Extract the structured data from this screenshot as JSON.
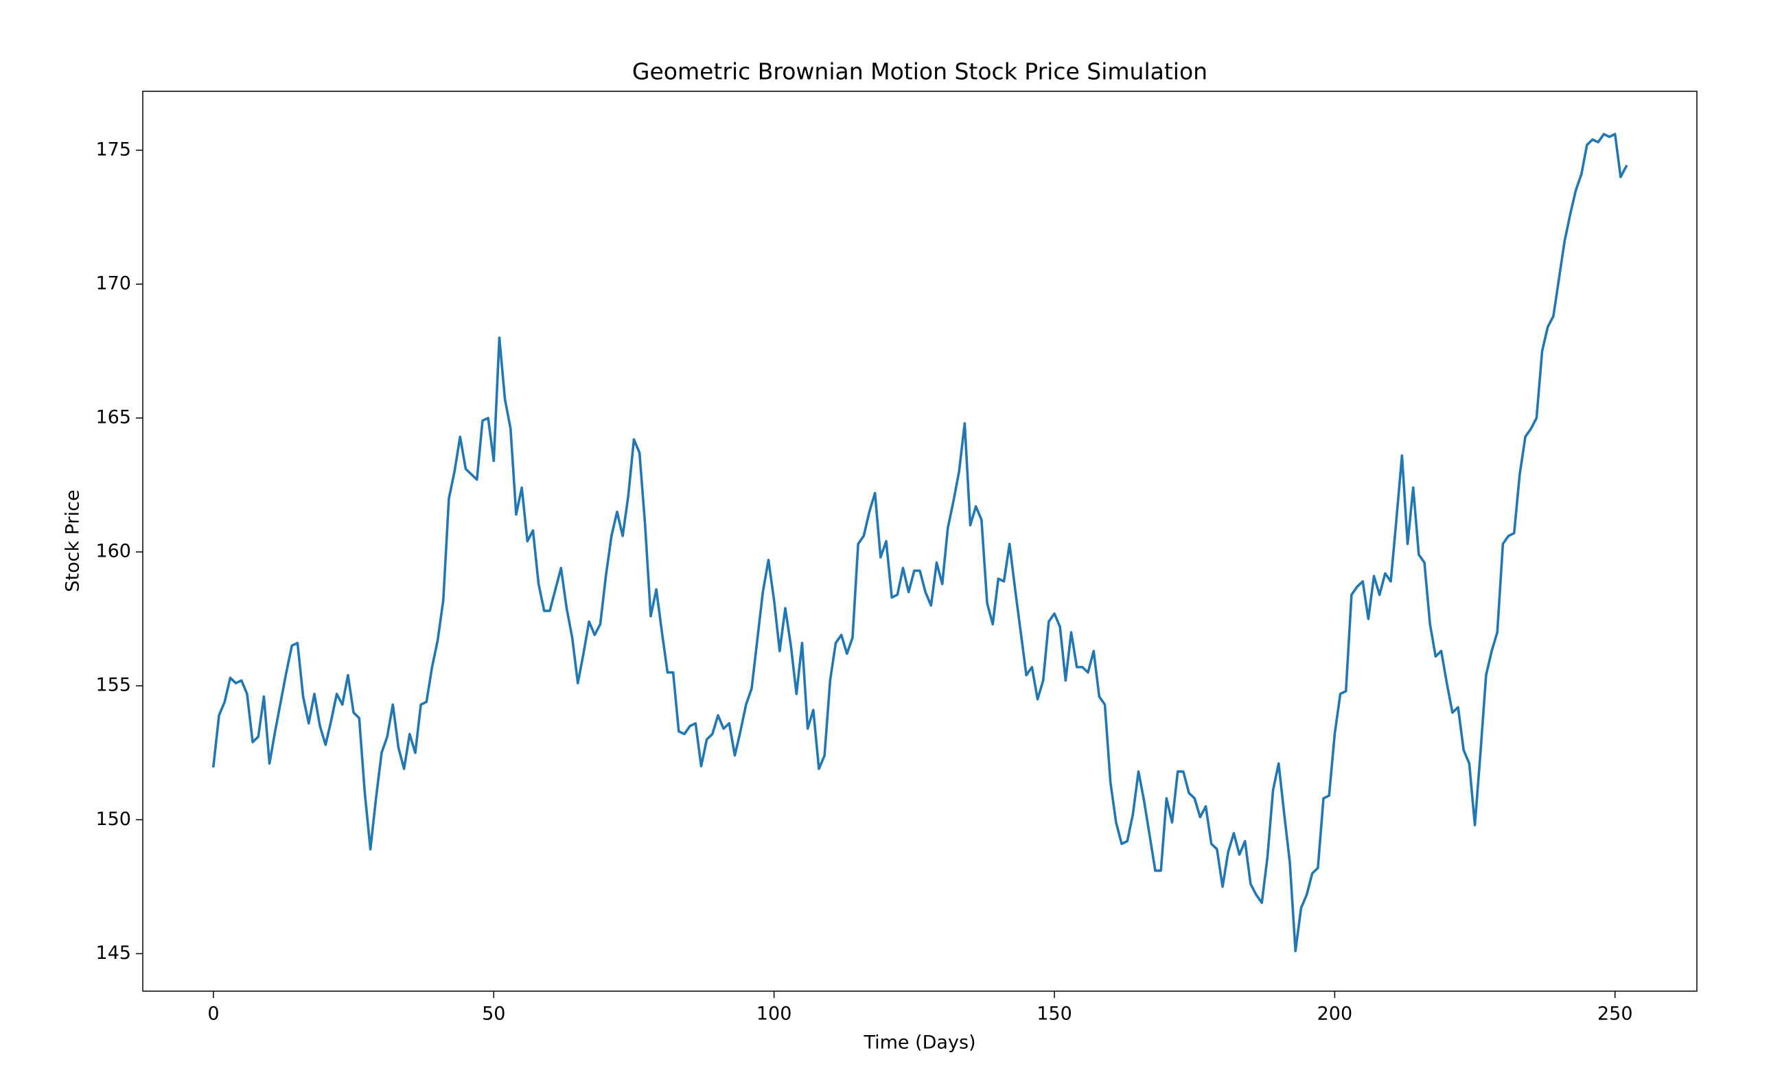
{
  "chart_data": {
    "type": "line",
    "title": "Geometric Brownian Motion Stock Price Simulation",
    "x_label": "Time (Days)",
    "y_label": "Stock Price",
    "xlim": [
      -12.6,
      264.6
    ],
    "ylim": [
      143.6,
      177.2
    ],
    "xticks": [
      0,
      50,
      100,
      150,
      200,
      250
    ],
    "yticks": [
      145,
      150,
      155,
      160,
      165,
      170,
      175
    ],
    "grid": false,
    "x": [
      0,
      1,
      2,
      3,
      4,
      5,
      6,
      7,
      8,
      9,
      10,
      11,
      12,
      13,
      14,
      15,
      16,
      17,
      18,
      19,
      20,
      21,
      22,
      23,
      24,
      25,
      26,
      27,
      28,
      29,
      30,
      31,
      32,
      33,
      34,
      35,
      36,
      37,
      38,
      39,
      40,
      41,
      42,
      43,
      44,
      45,
      46,
      47,
      48,
      49,
      50,
      51,
      52,
      53,
      54,
      55,
      56,
      57,
      58,
      59,
      60,
      61,
      62,
      63,
      64,
      65,
      66,
      67,
      68,
      69,
      70,
      71,
      72,
      73,
      74,
      75,
      76,
      77,
      78,
      79,
      80,
      81,
      82,
      83,
      84,
      85,
      86,
      87,
      88,
      89,
      90,
      91,
      92,
      93,
      94,
      95,
      96,
      97,
      98,
      99,
      100,
      101,
      102,
      103,
      104,
      105,
      106,
      107,
      108,
      109,
      110,
      111,
      112,
      113,
      114,
      115,
      116,
      117,
      118,
      119,
      120,
      121,
      122,
      123,
      124,
      125,
      126,
      127,
      128,
      129,
      130,
      131,
      132,
      133,
      134,
      135,
      136,
      137,
      138,
      139,
      140,
      141,
      142,
      143,
      144,
      145,
      146,
      147,
      148,
      149,
      150,
      151,
      152,
      153,
      154,
      155,
      156,
      157,
      158,
      159,
      160,
      161,
      162,
      163,
      164,
      165,
      166,
      167,
      168,
      169,
      170,
      171,
      172,
      173,
      174,
      175,
      176,
      177,
      178,
      179,
      180,
      181,
      182,
      183,
      184,
      185,
      186,
      187,
      188,
      189,
      190,
      191,
      192,
      193,
      194,
      195,
      196,
      197,
      198,
      199,
      200,
      201,
      202,
      203,
      204,
      205,
      206,
      207,
      208,
      209,
      210,
      211,
      212,
      213,
      214,
      215,
      216,
      217,
      218,
      219,
      220,
      221,
      222,
      223,
      224,
      225,
      226,
      227,
      228,
      229,
      230,
      231,
      232,
      233,
      234,
      235,
      236,
      237,
      238,
      239,
      240,
      241,
      242,
      243,
      244,
      245,
      246,
      247,
      248,
      249,
      250,
      251,
      252
    ],
    "series": [
      {
        "name": "Stock Price",
        "color": "#1f77b4",
        "values": [
          152.0,
          153.9,
          154.4,
          155.3,
          155.1,
          155.2,
          154.7,
          152.9,
          153.1,
          154.6,
          152.1,
          153.3,
          154.4,
          155.5,
          156.5,
          156.6,
          154.6,
          153.6,
          154.7,
          153.5,
          152.8,
          153.7,
          154.7,
          154.3,
          155.4,
          154.0,
          153.8,
          151.0,
          148.9,
          150.8,
          152.5,
          153.1,
          154.3,
          152.7,
          151.9,
          153.2,
          152.5,
          154.3,
          154.4,
          155.7,
          156.7,
          158.2,
          162.0,
          163.0,
          164.3,
          163.1,
          162.9,
          162.7,
          164.9,
          165.0,
          163.4,
          168.0,
          165.7,
          164.6,
          161.4,
          162.4,
          160.4,
          160.8,
          158.8,
          157.8,
          157.8,
          158.6,
          159.4,
          157.9,
          156.8,
          155.1,
          156.2,
          157.4,
          156.9,
          157.3,
          159.1,
          160.6,
          161.5,
          160.6,
          162.1,
          164.2,
          163.7,
          161.0,
          157.6,
          158.6,
          157.0,
          155.5,
          155.5,
          153.3,
          153.2,
          153.5,
          153.6,
          152.0,
          153.0,
          153.2,
          153.9,
          153.4,
          153.6,
          152.4,
          153.3,
          154.3,
          154.9,
          156.7,
          158.5,
          159.7,
          158.2,
          156.3,
          157.9,
          156.5,
          154.7,
          156.6,
          153.4,
          154.1,
          151.9,
          152.4,
          155.2,
          156.6,
          156.9,
          156.2,
          156.8,
          160.3,
          160.6,
          161.5,
          162.2,
          159.8,
          160.4,
          158.3,
          158.4,
          159.4,
          158.5,
          159.3,
          159.3,
          158.5,
          158.0,
          159.6,
          158.8,
          160.9,
          161.9,
          163.0,
          164.8,
          161.0,
          161.7,
          161.2,
          158.1,
          157.3,
          159.0,
          158.9,
          160.3,
          158.6,
          157.0,
          155.4,
          155.7,
          154.5,
          155.2,
          157.4,
          157.7,
          157.2,
          155.2,
          157.0,
          155.7,
          155.7,
          155.5,
          156.3,
          154.6,
          154.3,
          151.4,
          149.9,
          149.1,
          149.2,
          150.2,
          151.8,
          150.7,
          149.4,
          148.1,
          148.1,
          150.8,
          149.9,
          151.8,
          151.8,
          151.0,
          150.8,
          150.1,
          150.5,
          149.1,
          148.9,
          147.5,
          148.8,
          149.5,
          148.7,
          149.2,
          147.6,
          147.2,
          146.9,
          148.6,
          151.1,
          152.1,
          150.2,
          148.4,
          145.1,
          146.7,
          147.2,
          148.0,
          148.2,
          150.8,
          150.9,
          153.2,
          154.7,
          154.8,
          158.4,
          158.7,
          158.9,
          157.5,
          159.1,
          158.4,
          159.2,
          158.9,
          161.2,
          163.6,
          160.3,
          162.4,
          159.9,
          159.6,
          157.3,
          156.1,
          156.3,
          155.1,
          154.0,
          154.2,
          152.6,
          152.1,
          149.8,
          152.5,
          155.4,
          156.3,
          157.0,
          160.3,
          160.6,
          160.7,
          162.9,
          164.3,
          164.6,
          165.0,
          167.5,
          168.4,
          168.8,
          170.2,
          171.6,
          172.6,
          173.5,
          174.1,
          175.2,
          175.4,
          175.3,
          175.6,
          175.5,
          175.6,
          174.0,
          174.4
        ]
      }
    ]
  }
}
